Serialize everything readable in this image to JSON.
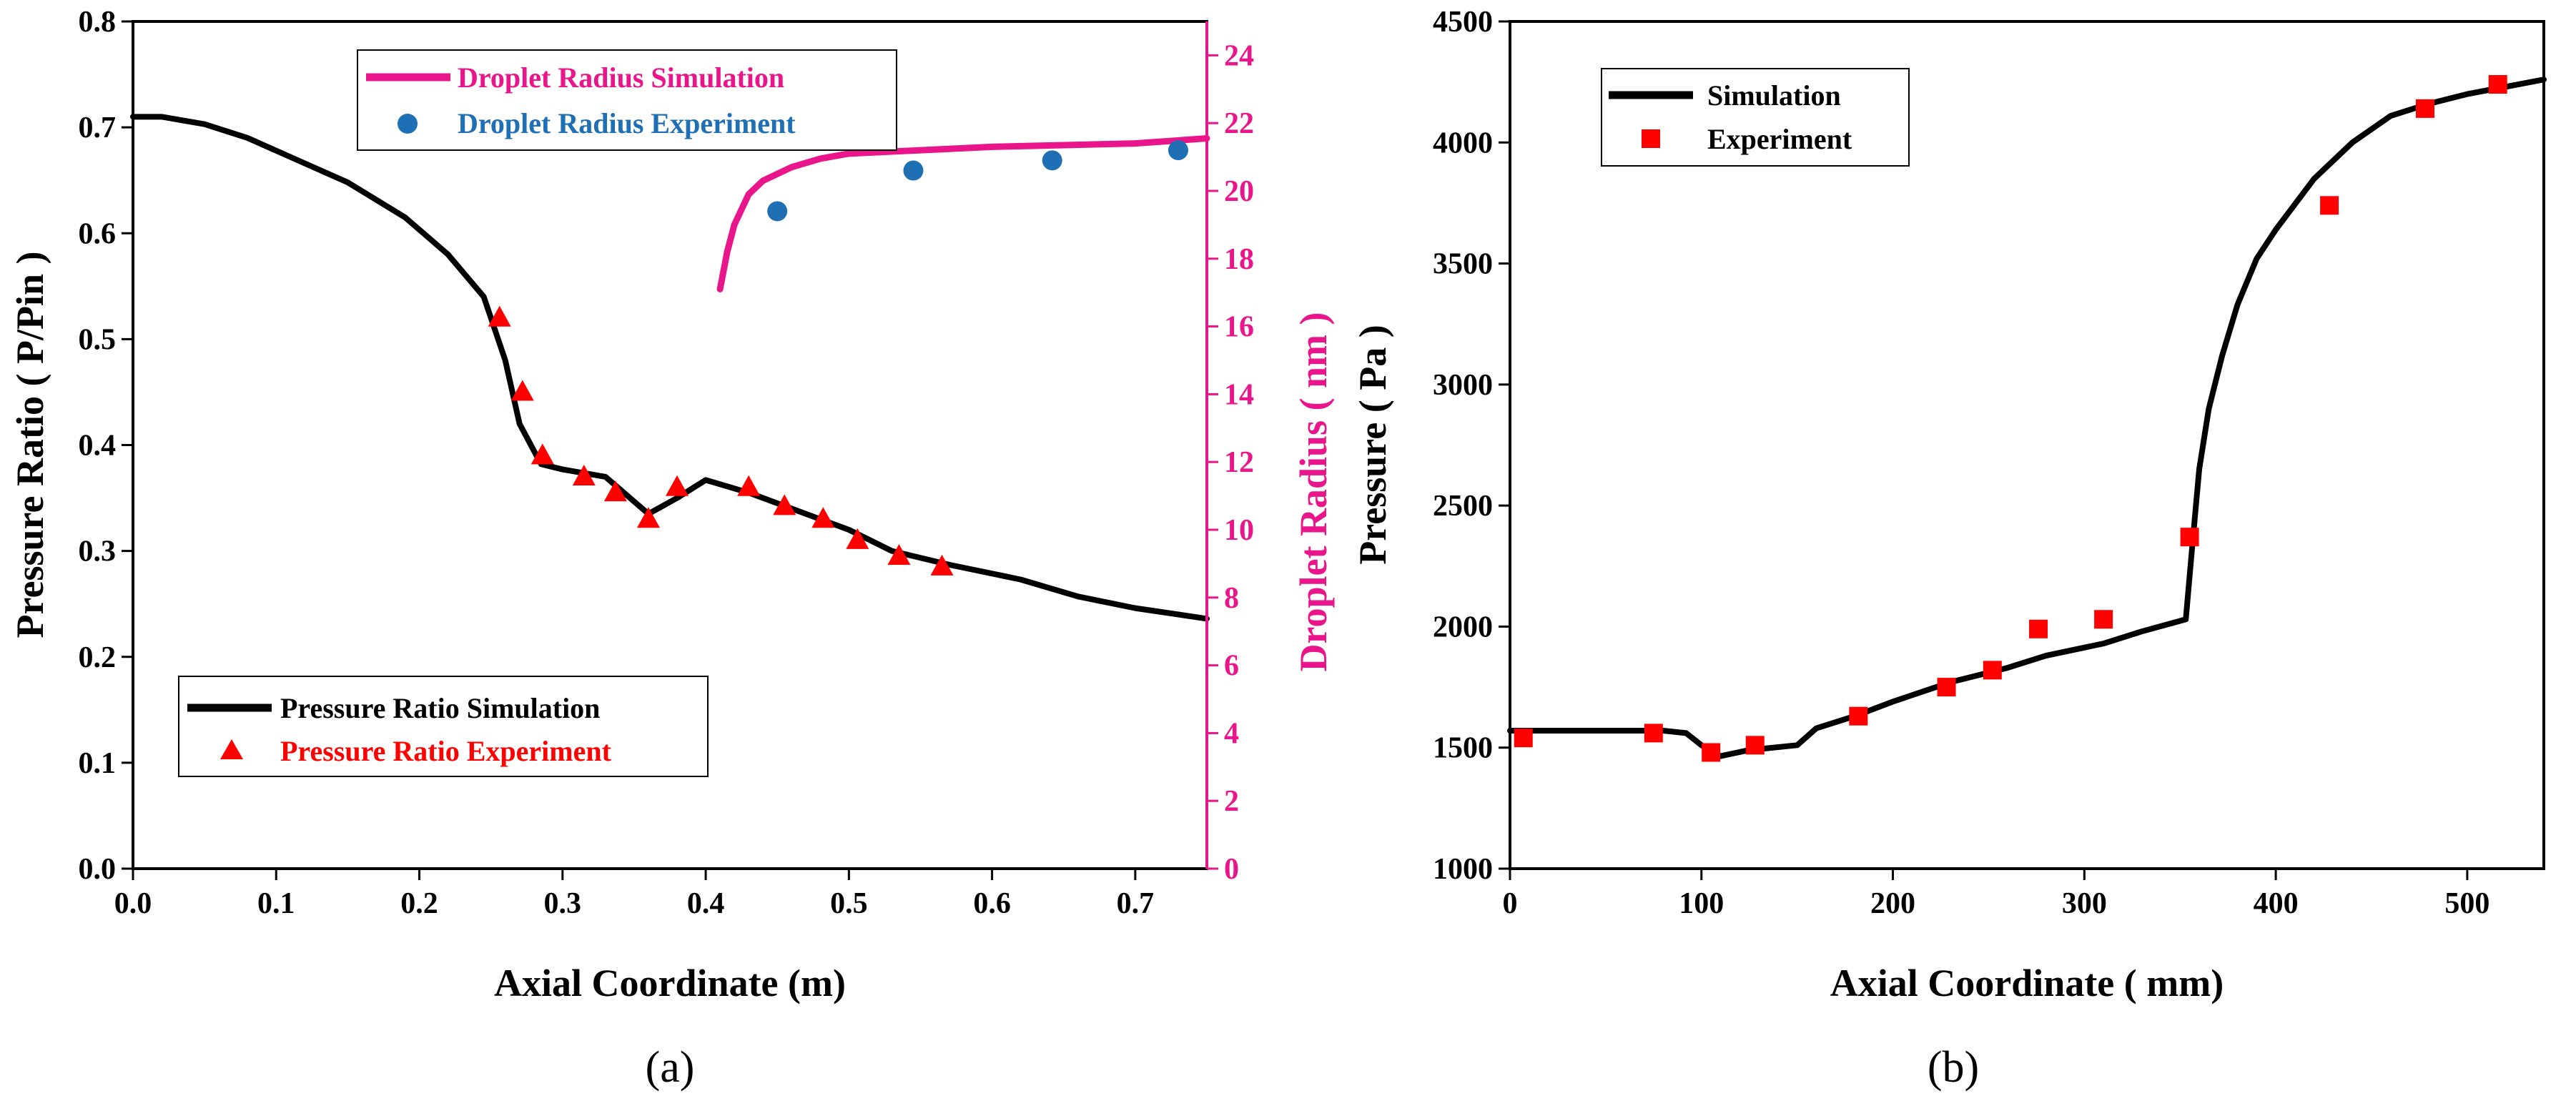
{
  "chart_data": [
    {
      "panel": "(a)",
      "type": "line",
      "xlabel": "Axial Coordinate (m)",
      "ylabel": "Pressure Ratio ( P/Pin )",
      "y2label": "Droplet Radius ( nm )",
      "xlim": [
        0,
        0.75
      ],
      "ylim": [
        0,
        0.8
      ],
      "y2lim": [
        0,
        25
      ],
      "x_ticks": [
        "0.0",
        "0.1",
        "0.2",
        "0.3",
        "0.4",
        "0.5",
        "0.6",
        "0.7"
      ],
      "y_ticks": [
        "0.0",
        "0.1",
        "0.2",
        "0.3",
        "0.4",
        "0.5",
        "0.6",
        "0.7",
        "0.8"
      ],
      "y2_ticks": [
        "0",
        "2",
        "4",
        "6",
        "8",
        "10",
        "12",
        "14",
        "16",
        "18",
        "20",
        "22",
        "24"
      ],
      "colors": {
        "sim": "#000000",
        "exp": "#ff0000",
        "radius_sim": "#e8168a",
        "radius_exp": "#1f6fb4",
        "right_axis": "#e8168a"
      },
      "series": [
        {
          "name": "Pressure Ratio Simulation",
          "kind": "line",
          "axis": "left",
          "color": "#000000",
          "x": [
            0,
            0.02,
            0.05,
            0.08,
            0.11,
            0.15,
            0.19,
            0.22,
            0.245,
            0.26,
            0.27,
            0.285,
            0.3,
            0.33,
            0.36,
            0.38,
            0.4,
            0.43,
            0.46,
            0.5,
            0.53,
            0.57,
            0.62,
            0.66,
            0.7,
            0.75
          ],
          "y": [
            0.71,
            0.71,
            0.703,
            0.69,
            0.672,
            0.648,
            0.615,
            0.58,
            0.54,
            0.48,
            0.42,
            0.382,
            0.377,
            0.37,
            0.335,
            0.35,
            0.367,
            0.355,
            0.34,
            0.32,
            0.3,
            0.287,
            0.273,
            0.257,
            0.246,
            0.236
          ]
        },
        {
          "name": "Pressure Ratio Experiment",
          "kind": "triangle",
          "axis": "left",
          "color": "#ff0000",
          "x": [
            0.256,
            0.272,
            0.286,
            0.315,
            0.337,
            0.36,
            0.38,
            0.43,
            0.455,
            0.482,
            0.506,
            0.535,
            0.565
          ],
          "y": [
            0.52,
            0.45,
            0.39,
            0.37,
            0.355,
            0.33,
            0.36,
            0.36,
            0.342,
            0.33,
            0.31,
            0.295,
            0.285
          ]
        },
        {
          "name": "Droplet Radius Simulation",
          "kind": "line",
          "axis": "right",
          "color": "#e8168a",
          "x": [
            0.41,
            0.415,
            0.42,
            0.43,
            0.44,
            0.46,
            0.48,
            0.5,
            0.55,
            0.6,
            0.65,
            0.7,
            0.75
          ],
          "y": [
            17.1,
            18.2,
            19.0,
            19.9,
            20.3,
            20.7,
            20.95,
            21.1,
            21.2,
            21.3,
            21.35,
            21.4,
            21.55
          ]
        },
        {
          "name": "Droplet Radius Experiment",
          "kind": "circle",
          "axis": "right",
          "color": "#1f6fb4",
          "x": [
            0.45,
            0.545,
            0.642,
            0.73
          ],
          "y": [
            19.4,
            20.6,
            20.9,
            21.2
          ]
        }
      ],
      "legends": {
        "top": [
          "Droplet Radius Simulation",
          "Droplet Radius Experiment"
        ],
        "bottom": [
          "Pressure Ratio Simulation",
          "Pressure Ratio Experiment"
        ]
      }
    },
    {
      "panel": "(b)",
      "type": "line",
      "xlabel": "Axial Coordinate ( mm)",
      "ylabel": "Pressure ( Pa )",
      "xlim": [
        0,
        540
      ],
      "ylim": [
        1000,
        4500
      ],
      "x_ticks": [
        "0",
        "100",
        "200",
        "300",
        "400",
        "500"
      ],
      "y_ticks": [
        "1000",
        "1500",
        "2000",
        "2500",
        "3000",
        "3500",
        "4000",
        "4500"
      ],
      "colors": {
        "sim": "#000000",
        "exp": "#ff0000"
      },
      "series": [
        {
          "name": "Simulation",
          "kind": "line",
          "color": "#000000",
          "x": [
            0,
            30,
            60,
            80,
            92,
            100,
            110,
            125,
            150,
            160,
            180,
            200,
            230,
            260,
            280,
            310,
            330,
            353,
            356,
            360,
            365,
            372,
            380,
            390,
            400,
            420,
            440,
            460,
            480,
            500,
            520,
            540
          ],
          "y": [
            1570,
            1570,
            1570,
            1570,
            1560,
            1510,
            1465,
            1490,
            1510,
            1580,
            1630,
            1690,
            1770,
            1830,
            1880,
            1930,
            1980,
            2030,
            2300,
            2650,
            2900,
            3120,
            3330,
            3520,
            3640,
            3850,
            4000,
            4110,
            4160,
            4200,
            4230,
            4260
          ]
        },
        {
          "name": "Experiment",
          "kind": "square",
          "color": "#ff0000",
          "x": [
            7,
            75,
            105,
            128,
            182,
            228,
            252,
            276,
            310,
            355,
            428,
            478,
            516
          ],
          "y": [
            1540,
            1560,
            1480,
            1510,
            1630,
            1750,
            1820,
            1990,
            2030,
            2370,
            3740,
            4140,
            4240
          ]
        }
      ],
      "legends": {
        "top": [
          "Simulation",
          "Experiment"
        ]
      }
    }
  ]
}
